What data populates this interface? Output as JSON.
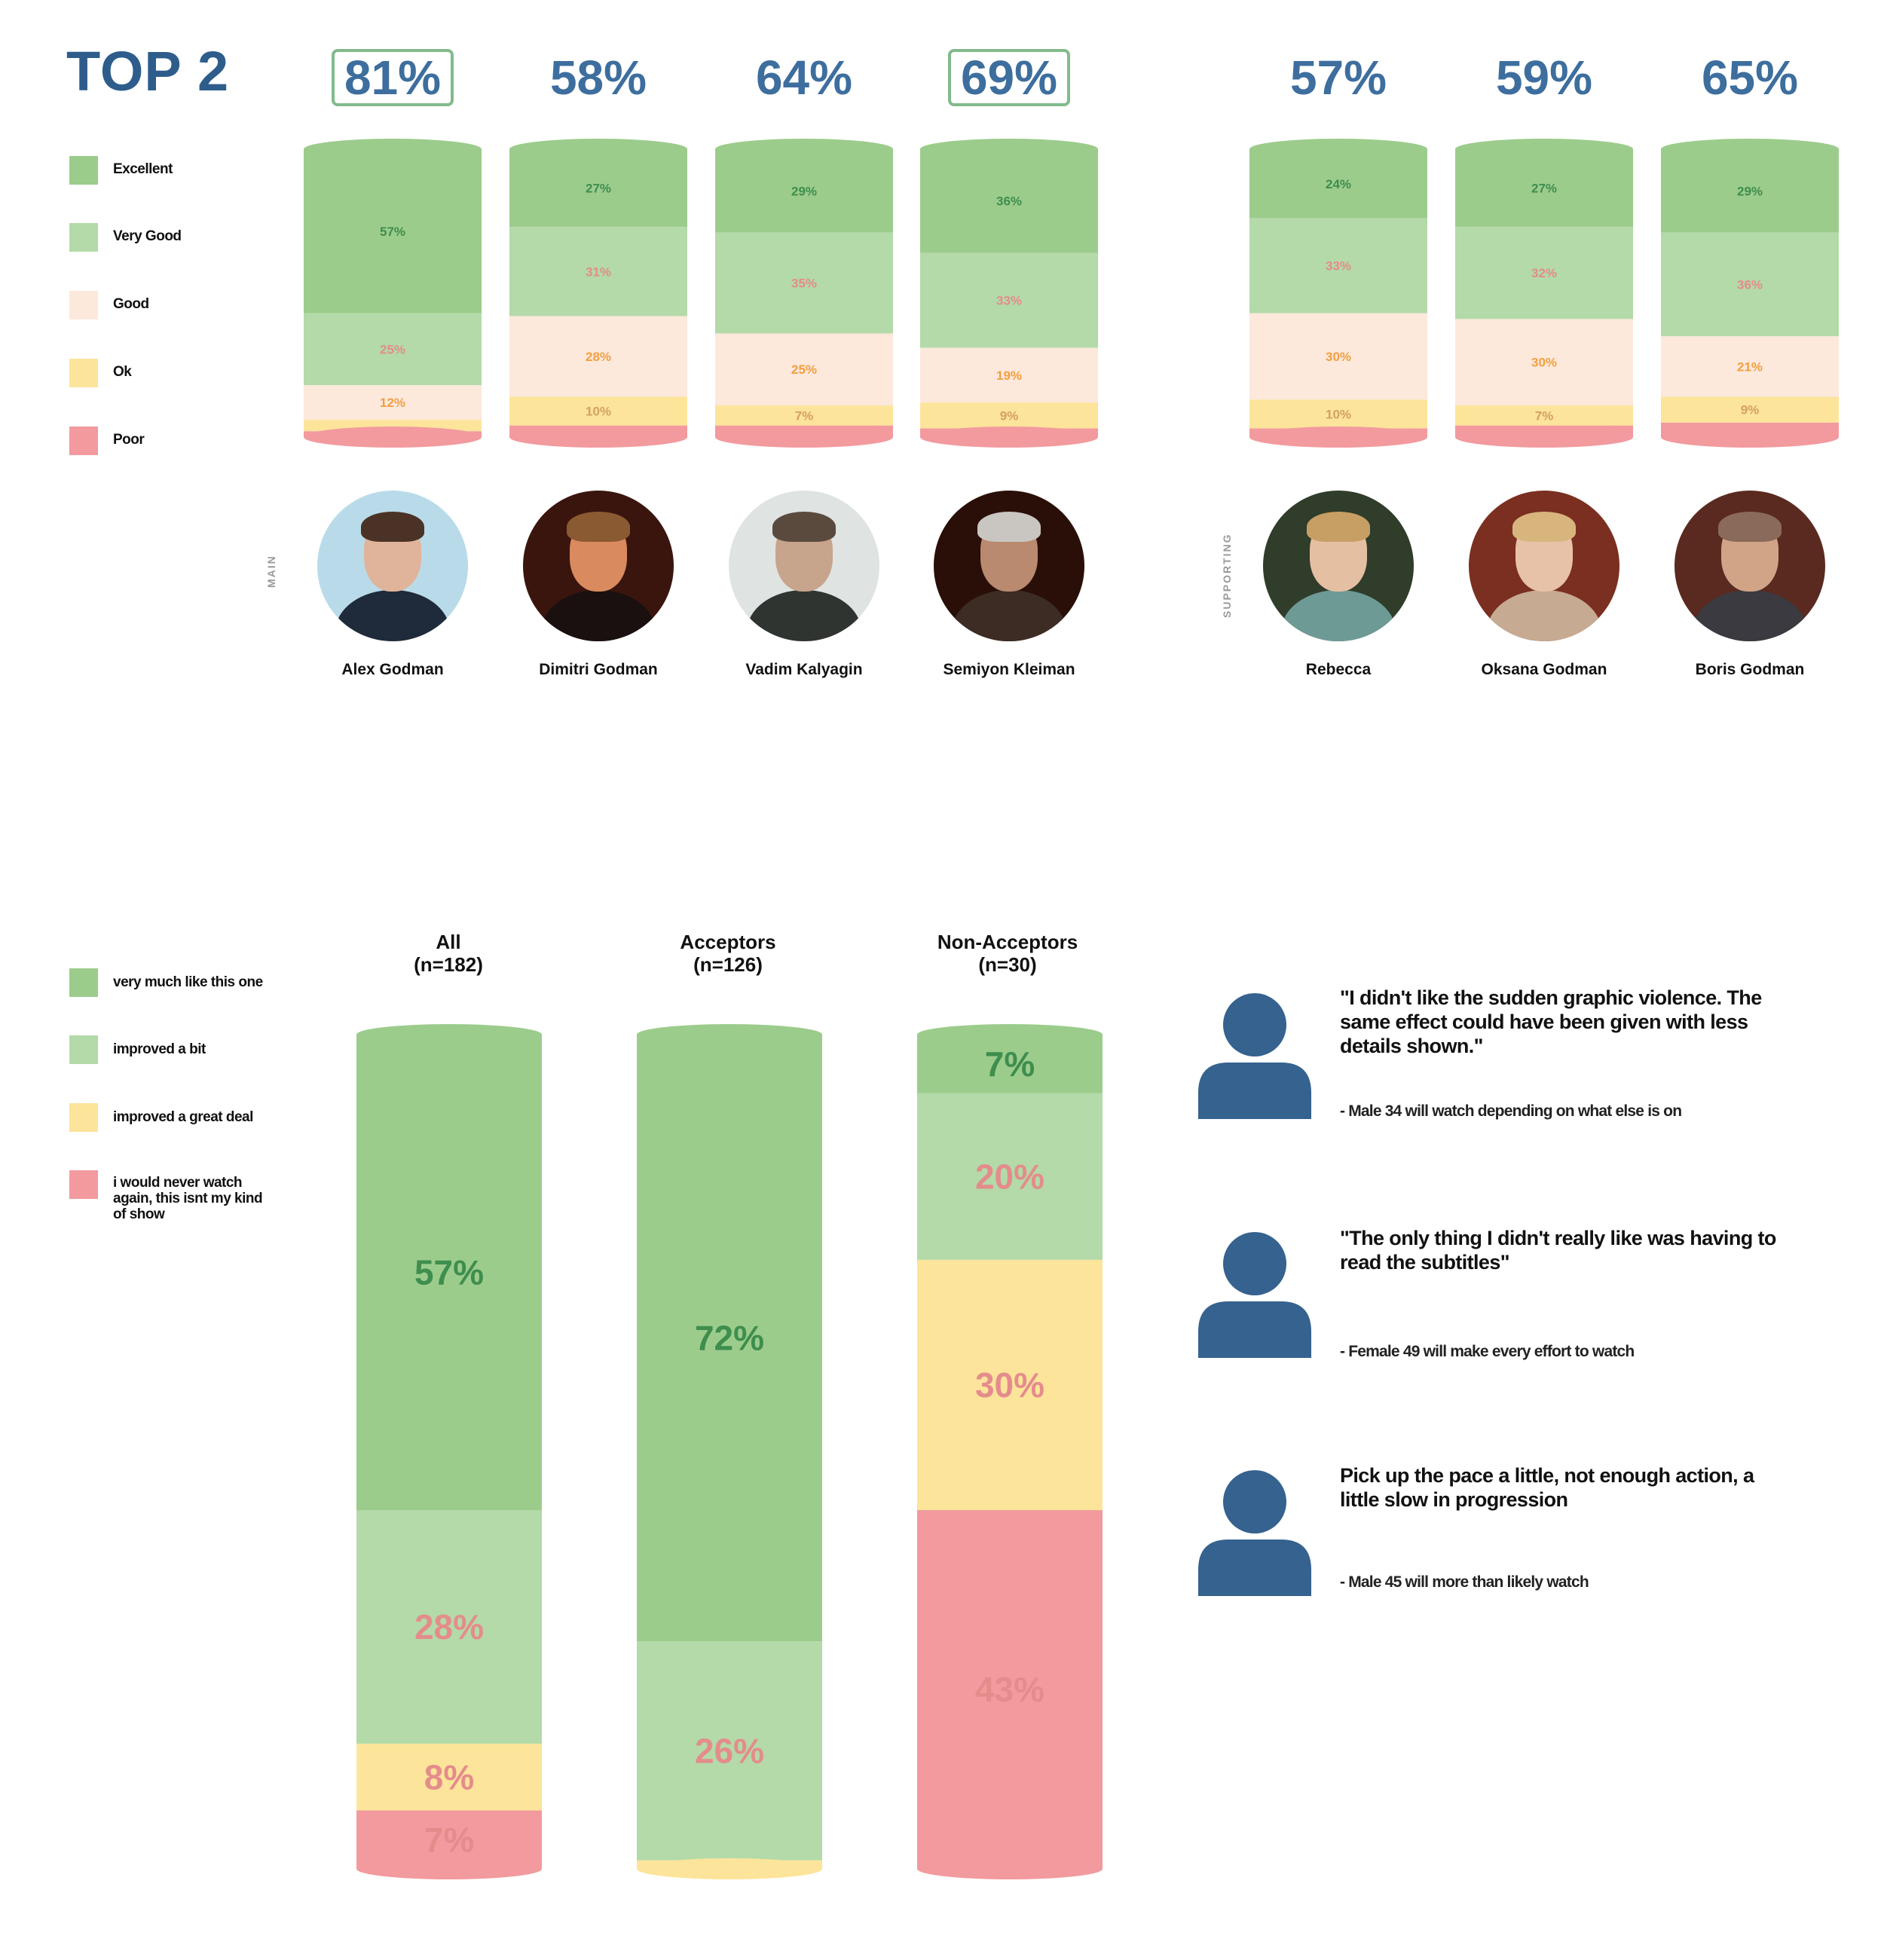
{
  "colors": {
    "excellent": "#9ccc8c",
    "very_good": "#b3daa8",
    "good": "#fde8dc",
    "ok": "#fde49b",
    "poor": "#f29a9e",
    "excellent_text": "#3e8e4e",
    "very_good_text": "#e48c8c",
    "good_text": "#f0a040",
    "ok_text": "#d4a060",
    "poor_text": "#cc6a6a",
    "brand_blue": "#2e5d8c"
  },
  "top_section": {
    "title": "TOP 2",
    "legend": [
      "Excellent",
      "Very Good",
      "Good",
      "Ok",
      "Poor"
    ],
    "main_label": "MAIN",
    "supporting_label": "SUPPORTING"
  },
  "bottom_section": {
    "legend": [
      "very much like this one",
      "improved a bit",
      "improved a great deal",
      "i would never watch again, this isnt my kind of show"
    ]
  },
  "quotes": [
    {
      "text": "\"I didn't like the sudden graphic violence. The same effect could have been given with less details shown.\"",
      "attribution": "- Male 34 will watch depending on what else is on"
    },
    {
      "text": "\"The only thing I didn't really like was having to read the subtitles\"",
      "attribution": "- Female 49 will make every effort to watch"
    },
    {
      "text": "Pick up the pace a little, not enough action, a little slow in progression",
      "attribution": "- Male 45 will more than likely watch"
    }
  ],
  "chart_data": [
    {
      "type": "bar",
      "stacked": true,
      "title": "TOP 2",
      "categories": [
        "Alex Godman",
        "Dimitri Godman",
        "Vadim Kalyagin",
        "Semiyon Kleiman",
        "Rebecca",
        "Oksana Godman",
        "Boris Godman"
      ],
      "group": [
        "MAIN",
        "MAIN",
        "MAIN",
        "MAIN",
        "SUPPORTING",
        "SUPPORTING",
        "SUPPORTING"
      ],
      "top2": [
        "81%",
        "58%",
        "64%",
        "69%",
        "57%",
        "59%",
        "65%"
      ],
      "top2_highlight": [
        true,
        false,
        false,
        true,
        false,
        false,
        false
      ],
      "series": [
        {
          "name": "Excellent",
          "values": [
            57,
            27,
            29,
            36,
            24,
            27,
            29
          ]
        },
        {
          "name": "Very Good",
          "values": [
            25,
            31,
            35,
            33,
            33,
            32,
            36
          ]
        },
        {
          "name": "Good",
          "values": [
            12,
            28,
            25,
            19,
            30,
            30,
            21
          ]
        },
        {
          "name": "Ok",
          "values": [
            4,
            10,
            7,
            9,
            10,
            7,
            9
          ]
        },
        {
          "name": "Poor",
          "values": [
            2,
            4,
            4,
            3,
            3,
            4,
            5
          ]
        }
      ],
      "labels": [
        [
          "57%",
          "25%",
          "12%",
          "",
          ""
        ],
        [
          "27%",
          "31%",
          "28%",
          "10%",
          ""
        ],
        [
          "29%",
          "35%",
          "25%",
          "7%",
          ""
        ],
        [
          "36%",
          "33%",
          "19%",
          "9%",
          ""
        ],
        [
          "24%",
          "33%",
          "30%",
          "10%",
          ""
        ],
        [
          "27%",
          "32%",
          "30%",
          "7%",
          ""
        ],
        [
          "29%",
          "36%",
          "21%",
          "9%",
          ""
        ]
      ],
      "ylim": [
        0,
        100
      ]
    },
    {
      "type": "bar",
      "stacked": true,
      "categories": [
        "All\n(n=182)",
        "Acceptors\n(n=126)",
        "Non-Acceptors\n(n=30)"
      ],
      "series": [
        {
          "name": "very much like this one",
          "values": [
            57,
            72,
            7
          ]
        },
        {
          "name": "improved a bit",
          "values": [
            28,
            26,
            20
          ]
        },
        {
          "name": "improved a great deal",
          "values": [
            8,
            1,
            30
          ]
        },
        {
          "name": "i would never watch again, this isnt my kind of show",
          "values": [
            7,
            0,
            43
          ]
        }
      ],
      "labels": [
        [
          "57%",
          "28%",
          "8%",
          "7%"
        ],
        [
          "72%",
          "26%",
          "",
          ""
        ],
        [
          "7%",
          "20%",
          "30%",
          "43%"
        ]
      ],
      "ylim": [
        0,
        100
      ]
    }
  ]
}
